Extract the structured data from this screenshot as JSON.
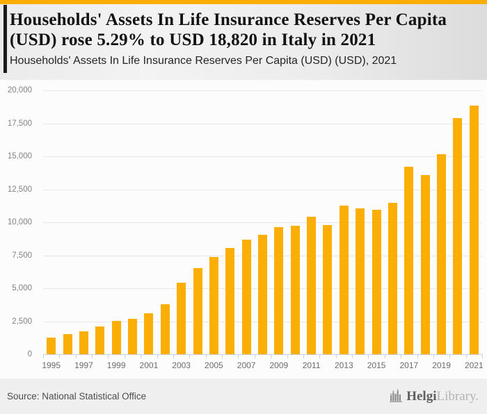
{
  "header": {
    "title": "Households' Assets In Life Insurance Reserves Per Capita (USD) rose 5.29% to USD 18,820 in Italy in 2021",
    "subtitle": "Households' Assets In Life Insurance Reserves Per Capita (USD) (USD), 2021"
  },
  "footer": {
    "source": "Source: National Statistical Office",
    "logo_primary": "Helgi",
    "logo_secondary": "Library."
  },
  "colors": {
    "brand_amber": "#F9AE06",
    "accent_black": "#1A1A1A",
    "axis": "#C6D2E4",
    "gridline": "#E7E7E7"
  },
  "chart_data": {
    "type": "bar",
    "title": "Households' Assets In Life Insurance Reserves Per Capita (USD) (USD), 2021",
    "xlabel": "",
    "ylabel": "",
    "x": [
      1995,
      1996,
      1997,
      1998,
      1999,
      2000,
      2001,
      2002,
      2003,
      2004,
      2005,
      2006,
      2007,
      2008,
      2009,
      2010,
      2011,
      2012,
      2013,
      2014,
      2015,
      2016,
      2017,
      2018,
      2019,
      2020,
      2021
    ],
    "values": [
      1250,
      1500,
      1750,
      2100,
      2550,
      2700,
      3100,
      3800,
      5400,
      6550,
      7350,
      8050,
      8700,
      9050,
      9650,
      9750,
      10400,
      9800,
      11250,
      11050,
      10950,
      11450,
      14200,
      13600,
      15150,
      17874,
      18820
    ],
    "ylim": [
      0,
      20000
    ],
    "ytick_step": 2500,
    "xtick_labeled_years": [
      1995,
      1997,
      1999,
      2001,
      2003,
      2005,
      2007,
      2009,
      2011,
      2013,
      2015,
      2017,
      2019,
      2021
    ],
    "bar_color": "#FBAE06",
    "grid": "horizontal",
    "legend": "none",
    "highlight_value_2021": "18,820",
    "growth_pct_2021": "5.29%"
  }
}
